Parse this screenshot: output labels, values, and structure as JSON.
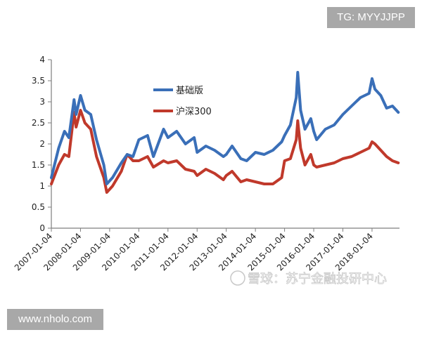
{
  "badges": {
    "top_right": "TG: MYYJJPP",
    "bottom_left": "www.nholo.com"
  },
  "watermark": "雪球：苏宁金融投研中心",
  "colors": {
    "blue_series": "#3a6fb8",
    "red_series": "#c0392b",
    "axis": "#7f7f7f"
  },
  "chart_data": {
    "type": "line",
    "title": "",
    "xlabel": "",
    "ylabel": "",
    "ylim": [
      0,
      4
    ],
    "y_ticks": [
      "0",
      "0.5",
      "1",
      "1.5",
      "2",
      "2.5",
      "3",
      "3.5",
      "4"
    ],
    "x_ticks": [
      "2007-01-04",
      "2008-01-04",
      "2009-01-04",
      "2010-01-04",
      "2011-01-04",
      "2012-01-04",
      "2013-01-04",
      "2014-01-04",
      "2015-01-04",
      "2016-01-04",
      "2017-01-04",
      "2018-01-04"
    ],
    "grid": false,
    "legend_position": "upper-left-center",
    "x": [
      2007.0,
      2007.25,
      2007.45,
      2007.6,
      2007.78,
      2007.85,
      2008.0,
      2008.15,
      2008.35,
      2008.55,
      2008.8,
      2008.9,
      2009.1,
      2009.4,
      2009.6,
      2009.8,
      2010.0,
      2010.3,
      2010.5,
      2010.85,
      2011.0,
      2011.3,
      2011.6,
      2011.9,
      2012.0,
      2012.3,
      2012.6,
      2012.9,
      2013.0,
      2013.2,
      2013.5,
      2013.7,
      2014.0,
      2014.3,
      2014.6,
      2014.9,
      2015.0,
      2015.2,
      2015.4,
      2015.45,
      2015.55,
      2015.7,
      2015.9,
      2016.0,
      2016.1,
      2016.4,
      2016.7,
      2017.0,
      2017.3,
      2017.6,
      2017.9,
      2018.0,
      2018.1,
      2018.3,
      2018.5,
      2018.7,
      2018.9
    ],
    "series": [
      {
        "name": "基础版",
        "color": "#3a6fb8",
        "values": [
          1.2,
          1.9,
          2.3,
          2.15,
          3.05,
          2.7,
          3.15,
          2.8,
          2.7,
          2.1,
          1.5,
          1.05,
          1.2,
          1.55,
          1.75,
          1.7,
          2.1,
          2.2,
          1.7,
          2.35,
          2.15,
          2.3,
          2.0,
          2.15,
          1.8,
          1.95,
          1.85,
          1.7,
          1.75,
          1.95,
          1.65,
          1.6,
          1.8,
          1.75,
          1.85,
          2.05,
          2.2,
          2.45,
          3.1,
          3.7,
          2.8,
          2.35,
          2.6,
          2.3,
          2.1,
          2.35,
          2.45,
          2.7,
          2.9,
          3.1,
          3.2,
          3.55,
          3.3,
          3.15,
          2.85,
          2.9,
          2.75
        ]
      },
      {
        "name": "沪深300",
        "color": "#c0392b",
        "values": [
          1.05,
          1.5,
          1.75,
          1.7,
          2.75,
          2.4,
          2.8,
          2.5,
          2.35,
          1.7,
          1.2,
          0.85,
          1.0,
          1.35,
          1.75,
          1.6,
          1.6,
          1.7,
          1.45,
          1.6,
          1.55,
          1.6,
          1.4,
          1.35,
          1.25,
          1.4,
          1.3,
          1.15,
          1.25,
          1.35,
          1.1,
          1.15,
          1.1,
          1.05,
          1.05,
          1.2,
          1.6,
          1.65,
          2.1,
          2.55,
          1.9,
          1.5,
          1.75,
          1.5,
          1.45,
          1.5,
          1.55,
          1.65,
          1.7,
          1.8,
          1.9,
          2.05,
          2.0,
          1.85,
          1.7,
          1.6,
          1.55
        ]
      }
    ]
  }
}
